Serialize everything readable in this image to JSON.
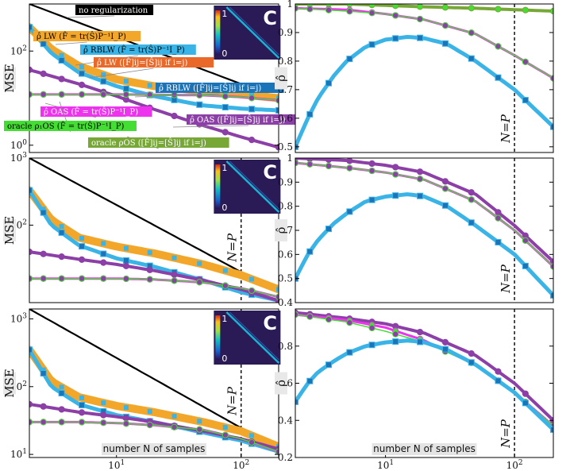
{
  "colors": {
    "lw": "#f3a72a",
    "rblw": "#3ab4e6",
    "lw_diag": "#e8692a",
    "rblw_diag": "#1b73b8",
    "oas": "#ee33ee",
    "oas_diag": "#8c3fa6",
    "oracle": "#44dd33",
    "oracle_diag": "#77a836",
    "noreg": "#000000"
  },
  "chart_data": [
    {
      "type": "line",
      "panel": "left-top",
      "ylabel": "MSE",
      "xscale": "log",
      "yscale": "log",
      "xlim": [
        2,
        200
      ],
      "ylim": [
        0.7,
        1000
      ],
      "yticks": [
        "10^0",
        "10^2"
      ],
      "xticks": [],
      "inset_letter": "C",
      "inset_ticks": [
        "1",
        "0"
      ],
      "annotations": {
        "noreg": "no regularization",
        "lw": "ρ̂ LW (F̂ = tr(Ŝ)P⁻¹I_P)",
        "rblw": "ρ̂ RBLW (F̂ = tr(Ŝ)P⁻¹I_P)",
        "lw_diag": "ρ̂ LW ([F̂]ij=[Ŝ]ij if i=j)",
        "rblw_diag": "ρ̂ RBLW ([F̂]ij=[Ŝ]ij if i=j)",
        "oas": "ρ̂ OAS (F̂ = tr(Ŝ)P⁻¹I_P)",
        "oas_diag": "ρ̂ OAS ([F̂]ij=[Ŝ]ij if i=j)",
        "oracle": "oracle ρ₁OS (F̂ = tr(Ŝ)P⁻¹I_P)",
        "oracle_diag": "oracle ρOS ([F̂]ij=[Ŝ]ij if i=j)"
      },
      "series": [
        {
          "key": "noreg",
          "x": [
            2,
            200
          ],
          "y": [
            1000,
            10
          ]
        },
        {
          "key": "lw",
          "x": [
            2,
            3,
            5,
            10,
            20,
            50,
            100,
            200
          ],
          "y": [
            320,
            110,
            48,
            25,
            18,
            14,
            12,
            10
          ]
        },
        {
          "key": "rblw",
          "x": [
            2,
            3,
            5,
            10,
            20,
            50,
            100,
            200
          ],
          "y": [
            320,
            90,
            35,
            18,
            11,
            7,
            6,
            5.5
          ]
        },
        {
          "key": "oas",
          "x": [
            2,
            5,
            10,
            20,
            50,
            100,
            200
          ],
          "y": [
            12,
            12,
            12,
            11.8,
            11.5,
            10.5,
            9.0
          ]
        },
        {
          "key": "oas_diag",
          "x": [
            2,
            5,
            10,
            20,
            50,
            100,
            200
          ],
          "y": [
            40,
            20,
            11,
            5.8,
            2.6,
            1.5,
            0.9
          ]
        },
        {
          "key": "oracle",
          "x": [
            2,
            5,
            10,
            20,
            50,
            100,
            200
          ],
          "y": [
            12,
            12,
            12,
            11.8,
            11.5,
            10.5,
            9.0
          ]
        }
      ]
    },
    {
      "type": "line",
      "panel": "left-middle",
      "ylabel": "MSE",
      "xscale": "log",
      "yscale": "log",
      "xlim": [
        2,
        200
      ],
      "ylim": [
        7,
        1000
      ],
      "yticks": [
        "10^2",
        "10^3"
      ],
      "xticks": [],
      "inset_letter": "C",
      "vline_label": "N=P",
      "series": [
        {
          "key": "noreg",
          "x": [
            2,
            200
          ],
          "y": [
            1000,
            10
          ]
        },
        {
          "key": "lw",
          "x": [
            2,
            3,
            5,
            10,
            20,
            50,
            100,
            200
          ],
          "y": [
            330,
            120,
            65,
            48,
            38,
            26,
            18,
            11
          ]
        },
        {
          "key": "rblw",
          "x": [
            2,
            3,
            5,
            10,
            20,
            50,
            100,
            200
          ],
          "y": [
            330,
            100,
            50,
            32,
            24,
            15,
            10,
            7.5
          ]
        },
        {
          "key": "oas",
          "x": [
            2,
            5,
            10,
            20,
            50,
            100,
            200
          ],
          "y": [
            16,
            16,
            16,
            15.5,
            14,
            11.5,
            8.5
          ]
        },
        {
          "key": "oas_diag",
          "x": [
            2,
            5,
            10,
            20,
            50,
            100,
            200
          ],
          "y": [
            40,
            31,
            26,
            21,
            15,
            11,
            7.5
          ]
        },
        {
          "key": "oracle",
          "x": [
            2,
            5,
            10,
            20,
            50,
            100,
            200
          ],
          "y": [
            16,
            16,
            16,
            15.5,
            14,
            11.5,
            8.5
          ]
        }
      ]
    },
    {
      "type": "line",
      "panel": "left-bottom",
      "ylabel": "MSE",
      "xscale": "log",
      "yscale": "log",
      "xlim": [
        2,
        200
      ],
      "ylim": [
        9,
        1400
      ],
      "yticks": [
        "10^1",
        "10^2",
        "10^3"
      ],
      "xticks": [
        "10^1",
        "10^2"
      ],
      "inset_letter": "C",
      "vline_label": "N=P",
      "xlabel": "number N of samples",
      "series": [
        {
          "key": "noreg",
          "x": [
            2,
            200
          ],
          "y": [
            1400,
            12
          ]
        },
        {
          "key": "lw",
          "x": [
            2,
            3,
            5,
            10,
            20,
            50,
            100,
            200
          ],
          "y": [
            350,
            120,
            70,
            52,
            42,
            30,
            22,
            13
          ]
        },
        {
          "key": "rblw",
          "x": [
            2,
            3,
            5,
            10,
            20,
            50,
            100,
            200
          ],
          "y": [
            350,
            100,
            55,
            38,
            30,
            21,
            16,
            11
          ]
        },
        {
          "key": "oas",
          "x": [
            2,
            5,
            10,
            20,
            50,
            100,
            200
          ],
          "y": [
            30,
            30,
            29,
            27,
            23,
            17,
            11
          ]
        },
        {
          "key": "oas_diag",
          "x": [
            2,
            5,
            10,
            20,
            50,
            100,
            200
          ],
          "y": [
            55,
            42,
            36,
            30,
            22,
            17,
            12
          ]
        },
        {
          "key": "oracle",
          "x": [
            2,
            5,
            10,
            20,
            50,
            100,
            200
          ],
          "y": [
            30,
            30,
            29,
            27,
            23,
            17,
            11
          ]
        }
      ]
    },
    {
      "type": "line",
      "panel": "right-top",
      "ylabel": "ρ̂",
      "xscale": "log",
      "xlim": [
        2,
        200
      ],
      "ylim": [
        0.48,
        1.0
      ],
      "yticks": [
        "0.5",
        "0.6",
        "0.7",
        "0.8",
        "0.9",
        "1"
      ],
      "xticks": [],
      "vline_label": "N=P",
      "series": [
        {
          "key": "oracle_diag",
          "x": [
            2,
            5,
            10,
            20,
            50,
            100,
            200
          ],
          "y": [
            1.0,
            1.0,
            0.995,
            0.99,
            0.985,
            0.98,
            0.975
          ]
        },
        {
          "key": "oas",
          "x": [
            2,
            5,
            10,
            20,
            50,
            100,
            200
          ],
          "y": [
            0.985,
            0.98,
            0.965,
            0.945,
            0.895,
            0.82,
            0.74
          ]
        },
        {
          "key": "oracle",
          "x": [
            2,
            5,
            10,
            20,
            50,
            100,
            200
          ],
          "y": [
            0.985,
            0.975,
            0.965,
            0.945,
            0.895,
            0.82,
            0.74
          ]
        },
        {
          "key": "rblw",
          "x": [
            2,
            2.5,
            3,
            4,
            5,
            7,
            10,
            15,
            20,
            30,
            50,
            100,
            200
          ],
          "y": [
            0.5,
            0.6,
            0.67,
            0.75,
            0.8,
            0.85,
            0.875,
            0.885,
            0.88,
            0.86,
            0.8,
            0.7,
            0.57
          ]
        }
      ]
    },
    {
      "type": "line",
      "panel": "right-middle",
      "ylabel": "ρ̂",
      "xscale": "log",
      "xlim": [
        2,
        200
      ],
      "ylim": [
        0.4,
        1.0
      ],
      "yticks": [
        "0.4",
        "0.5",
        "0.6",
        "0.7",
        "0.8",
        "0.9",
        "1"
      ],
      "xticks": [],
      "vline_label": "N=P",
      "series": [
        {
          "key": "oas_diag",
          "x": [
            2,
            5,
            10,
            20,
            50,
            100,
            200
          ],
          "y": [
            1.0,
            0.99,
            0.97,
            0.94,
            0.85,
            0.72,
            0.57
          ]
        },
        {
          "key": "oas",
          "x": [
            2,
            5,
            10,
            20,
            50,
            100,
            200
          ],
          "y": [
            0.98,
            0.96,
            0.94,
            0.91,
            0.82,
            0.7,
            0.55
          ]
        },
        {
          "key": "oracle",
          "x": [
            2,
            5,
            10,
            20,
            50,
            100,
            200
          ],
          "y": [
            0.98,
            0.96,
            0.94,
            0.91,
            0.82,
            0.7,
            0.55
          ]
        },
        {
          "key": "rblw",
          "x": [
            2,
            2.5,
            3,
            4,
            5,
            7,
            10,
            15,
            20,
            30,
            50,
            100,
            200
          ],
          "y": [
            0.5,
            0.6,
            0.66,
            0.73,
            0.77,
            0.82,
            0.84,
            0.85,
            0.84,
            0.8,
            0.72,
            0.6,
            0.43
          ]
        }
      ]
    },
    {
      "type": "line",
      "panel": "right-bottom",
      "ylabel": "ρ̂",
      "xscale": "log",
      "xlim": [
        2,
        200
      ],
      "ylim": [
        0.2,
        1.0
      ],
      "yticks": [
        "0.2",
        "0.4",
        "0.6",
        "0.8"
      ],
      "xticks": [
        "10^1",
        "10^2"
      ],
      "vline_label": "N=P",
      "xlabel": "number N of samples",
      "series": [
        {
          "key": "oas_diag",
          "x": [
            2,
            5,
            10,
            20,
            50,
            100,
            200
          ],
          "y": [
            0.98,
            0.95,
            0.92,
            0.87,
            0.75,
            0.6,
            0.4
          ]
        },
        {
          "key": "oas",
          "x": [
            2,
            5,
            10,
            20,
            50,
            100,
            200
          ],
          "y": [
            0.97,
            0.94,
            0.9,
            0.83,
            0.7,
            0.55,
            0.37
          ]
        },
        {
          "key": "oracle",
          "x": [
            2,
            5,
            10,
            20,
            50,
            100,
            200
          ],
          "y": [
            0.97,
            0.93,
            0.88,
            0.82,
            0.7,
            0.55,
            0.37
          ]
        },
        {
          "key": "rblw",
          "x": [
            2,
            2.5,
            3,
            4,
            5,
            7,
            10,
            15,
            20,
            30,
            50,
            100,
            200
          ],
          "y": [
            0.5,
            0.6,
            0.66,
            0.72,
            0.76,
            0.8,
            0.82,
            0.83,
            0.82,
            0.78,
            0.7,
            0.55,
            0.35
          ]
        }
      ]
    }
  ]
}
